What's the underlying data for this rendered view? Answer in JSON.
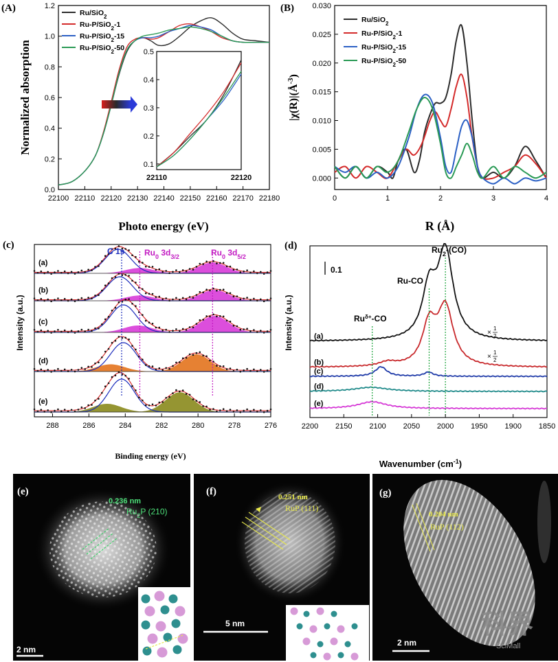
{
  "chart_data": [
    {
      "panel": "(A)",
      "type": "line",
      "xlabel": "Photo energy (eV)",
      "ylabel": "Normalized absorption",
      "xlim": [
        22100,
        22180
      ],
      "ylim": [
        0,
        1.2
      ],
      "xticks": [
        "22100",
        "22110",
        "22120",
        "22130",
        "22140",
        "22150",
        "22160",
        "22170",
        "22180"
      ],
      "yticks": [
        "0.0",
        "0.2",
        "0.4",
        "0.6",
        "0.8",
        "1.0",
        "1.2"
      ],
      "legend": "top-left",
      "series": [
        {
          "name": "Ru/SiO2",
          "color": "#2b2b2b",
          "x": [
            22100,
            22105,
            22110,
            22114,
            22117,
            22120,
            22123,
            22126,
            22129,
            22132,
            22135,
            22138,
            22142,
            22146,
            22150,
            22154,
            22158,
            22162,
            22166,
            22170,
            22175,
            22180
          ],
          "y": [
            0.03,
            0.05,
            0.12,
            0.22,
            0.36,
            0.55,
            0.75,
            0.9,
            0.97,
            0.99,
            0.97,
            0.94,
            0.95,
            1.0,
            1.06,
            1.1,
            1.12,
            1.08,
            1.02,
            0.98,
            0.97,
            0.96
          ]
        },
        {
          "name": "Ru-P/SiO2-1",
          "color": "#d42a2a",
          "x": [
            22100,
            22105,
            22110,
            22114,
            22117,
            22120,
            22123,
            22126,
            22129,
            22132,
            22135,
            22138,
            22142,
            22146,
            22150,
            22154,
            22158,
            22162,
            22166,
            22170,
            22175,
            22180
          ],
          "y": [
            0.03,
            0.05,
            0.12,
            0.22,
            0.37,
            0.57,
            0.78,
            0.93,
            0.98,
            0.99,
            0.98,
            0.99,
            1.03,
            1.07,
            1.08,
            1.06,
            1.03,
            0.99,
            0.97,
            0.96,
            0.96,
            0.96
          ]
        },
        {
          "name": "Ru-P/SiO2-15",
          "color": "#2a5fc4",
          "x": [
            22100,
            22105,
            22110,
            22114,
            22117,
            22120,
            22123,
            22126,
            22129,
            22132,
            22135,
            22138,
            22142,
            22146,
            22150,
            22154,
            22158,
            22162,
            22166,
            22170,
            22175,
            22180
          ],
          "y": [
            0.03,
            0.05,
            0.12,
            0.22,
            0.36,
            0.55,
            0.76,
            0.91,
            0.97,
            0.99,
            0.99,
            1.0,
            1.03,
            1.05,
            1.07,
            1.06,
            1.04,
            1.0,
            0.97,
            0.96,
            0.96,
            0.96
          ]
        },
        {
          "name": "Ru-P/SiO2-50",
          "color": "#2a9a55",
          "x": [
            22100,
            22105,
            22110,
            22114,
            22117,
            22120,
            22123,
            22126,
            22129,
            22132,
            22135,
            22138,
            22142,
            22146,
            22150,
            22154,
            22158,
            22162,
            22166,
            22170,
            22175,
            22180
          ],
          "y": [
            0.03,
            0.05,
            0.12,
            0.22,
            0.36,
            0.55,
            0.76,
            0.91,
            0.97,
            1.0,
            1.01,
            1.02,
            1.04,
            1.05,
            1.06,
            1.05,
            1.03,
            1.0,
            0.97,
            0.96,
            0.96,
            0.96
          ]
        }
      ],
      "inset": {
        "xlim": [
          22110,
          22120
        ],
        "ylim": [
          0.08,
          0.5
        ],
        "xticks": [
          "22110",
          "22120"
        ],
        "yticks": [
          "0.1",
          "0.2",
          "0.3",
          "0.4",
          "0.5"
        ],
        "series": [
          {
            "color": "#2b2b2b",
            "x": [
              22110,
              22112,
              22114,
              22116,
              22118,
              22120
            ],
            "y": [
              0.09,
              0.14,
              0.2,
              0.26,
              0.35,
              0.47
            ]
          },
          {
            "color": "#d42a2a",
            "x": [
              22110,
              22112,
              22114,
              22116,
              22118,
              22120
            ],
            "y": [
              0.09,
              0.14,
              0.21,
              0.28,
              0.36,
              0.46
            ]
          },
          {
            "color": "#2a5fc4",
            "x": [
              22110,
              22112,
              22114,
              22116,
              22118,
              22120
            ],
            "y": [
              0.09,
              0.13,
              0.19,
              0.26,
              0.33,
              0.42
            ]
          },
          {
            "color": "#2a9a55",
            "x": [
              22110,
              22112,
              22114,
              22116,
              22118,
              22120
            ],
            "y": [
              0.09,
              0.13,
              0.19,
              0.26,
              0.34,
              0.43
            ]
          }
        ]
      }
    },
    {
      "panel": "(B)",
      "type": "line",
      "xlabel": "R (Å)",
      "ylabel": "|χ(R)|(Å-3)",
      "xlim": [
        0,
        4
      ],
      "ylim": [
        -0.002,
        0.03
      ],
      "xticks": [
        "0",
        "1",
        "2",
        "3",
        "4"
      ],
      "yticks": [
        "0.000",
        "0.005",
        "0.010",
        "0.015",
        "0.020",
        "0.025",
        "0.030"
      ],
      "legend": "top-left",
      "series": [
        {
          "name": "Ru/SiO2",
          "color": "#2b2b2b",
          "x": [
            0,
            0.2,
            0.4,
            0.6,
            0.8,
            1.0,
            1.1,
            1.2,
            1.35,
            1.5,
            1.6,
            1.7,
            1.8,
            1.9,
            2.0,
            2.1,
            2.2,
            2.3,
            2.4,
            2.5,
            2.6,
            2.7,
            2.8,
            3.0,
            3.2,
            3.4,
            3.6,
            3.8,
            4.0
          ],
          "y": [
            0.002,
            0.0,
            0.002,
            0.0,
            0.002,
            0.001,
            0.0,
            0.003,
            0.005,
            0.001,
            0.003,
            0.008,
            0.011,
            0.013,
            0.013,
            0.014,
            0.018,
            0.024,
            0.0265,
            0.02,
            0.01,
            0.002,
            0.0,
            0.001,
            0.0,
            0.002,
            0.0055,
            0.003,
            0.0
          ]
        },
        {
          "name": "Ru-P/SiO2-1",
          "color": "#d42a2a",
          "x": [
            0,
            0.2,
            0.4,
            0.6,
            0.8,
            1.0,
            1.2,
            1.35,
            1.5,
            1.65,
            1.8,
            1.9,
            2.0,
            2.1,
            2.2,
            2.3,
            2.4,
            2.5,
            2.6,
            2.7,
            2.8,
            3.0,
            3.2,
            3.4,
            3.6,
            3.8,
            4.0
          ],
          "y": [
            0.001,
            0.002,
            0.0,
            0.002,
            0.001,
            0.0,
            0.003,
            0.005,
            0.004,
            0.006,
            0.01,
            0.0115,
            0.01,
            0.009,
            0.012,
            0.016,
            0.018,
            0.014,
            0.007,
            0.002,
            0.0,
            0.0,
            0.001,
            0.002,
            0.004,
            0.0025,
            0.0
          ]
        },
        {
          "name": "Ru-P/SiO2-15",
          "color": "#2a5fc4",
          "x": [
            0,
            0.2,
            0.4,
            0.6,
            0.8,
            1.0,
            1.2,
            1.4,
            1.55,
            1.7,
            1.85,
            2.0,
            2.1,
            2.2,
            2.3,
            2.4,
            2.5,
            2.6,
            2.7,
            2.8,
            3.0,
            3.2,
            3.4,
            3.6,
            3.8,
            4.0
          ],
          "y": [
            0.002,
            0.001,
            0.002,
            0.0,
            0.001,
            0.0,
            0.002,
            0.007,
            0.012,
            0.0145,
            0.013,
            0.007,
            0.002,
            0.001,
            0.005,
            0.009,
            0.01,
            0.007,
            0.002,
            0.0,
            -0.001,
            0.0,
            -0.001,
            0.0,
            -0.0005,
            0.0
          ]
        },
        {
          "name": "Ru-P/SiO2-50",
          "color": "#2a9a55",
          "x": [
            0,
            0.2,
            0.4,
            0.6,
            0.8,
            1.0,
            1.2,
            1.4,
            1.55,
            1.7,
            1.85,
            2.0,
            2.1,
            2.2,
            2.3,
            2.4,
            2.5,
            2.6,
            2.7,
            2.8,
            3.0,
            3.2,
            3.4,
            3.6,
            3.8,
            4.0
          ],
          "y": [
            0.002,
            0.0,
            0.002,
            0.0,
            0.002,
            0.001,
            0.003,
            0.008,
            0.012,
            0.014,
            0.012,
            0.006,
            0.001,
            0.0,
            0.002,
            0.004,
            0.006,
            0.004,
            0.001,
            0.0,
            0.002,
            0.0,
            0.002,
            0.001,
            0.0,
            0.001
          ]
        }
      ]
    },
    {
      "panel": "(c)",
      "type": "line",
      "xlabel": "Binding energy (eV)",
      "ylabel": "Intensity (a.u.)",
      "xlim": [
        289,
        276
      ],
      "xticks": [
        "288",
        "286",
        "284",
        "282",
        "280",
        "278",
        "276"
      ],
      "annotations": [
        "C 1s",
        "Ru0 3d3/2",
        "Ru0 3d5/2"
      ],
      "spectra": [
        {
          "label": "(a)",
          "fill": "#d83bd8",
          "c1s": 284.4,
          "ru": 283.2,
          "ru2": 279.2,
          "ru_h": 0.22,
          "ru2_h": 0.45
        },
        {
          "label": "(b)",
          "fill": "#d83bd8",
          "c1s": 284.3,
          "ru": 283.2,
          "ru2": 279.1,
          "ru_h": 0.22,
          "ru2_h": 0.45
        },
        {
          "label": "(c)",
          "fill": "#d83bd8",
          "c1s": 284.1,
          "ru": 283.3,
          "ru2": 279.1,
          "ru_h": 0.25,
          "ru2_h": 0.6
        },
        {
          "label": "(d)",
          "fill": "#e3731d",
          "c1s": 284.1,
          "ru": 284.8,
          "ru2": 280.1,
          "ru_h": 0.25,
          "ru2_h": 0.6
        },
        {
          "label": "(e)",
          "fill": "#8a8a1c",
          "c1s": 284.2,
          "ru": 285.0,
          "ru2": 281.0,
          "ru_h": 0.25,
          "ru2_h": 0.6
        }
      ]
    },
    {
      "panel": "(d)",
      "type": "line",
      "xlabel": "Wavenumber (cm-1)",
      "ylabel": "Intensity (a.u.)",
      "xlim": [
        2200,
        1850
      ],
      "xticks": [
        "2200",
        "2150",
        "2100",
        "2050",
        "2000",
        "1950",
        "1900",
        "1850"
      ],
      "scale_bar": "0.1",
      "annotations": [
        "Ru-CO",
        "Ru2-(CO)",
        "Ruδ+-CO"
      ],
      "multiplier": "×1/2",
      "spectra": [
        {
          "label": "(a)",
          "color": "#111111"
        },
        {
          "label": "(b)",
          "color": "#c8282b"
        },
        {
          "label": "(c)",
          "color": "#1e3aa8"
        },
        {
          "label": "(d)",
          "color": "#1f8a8a"
        },
        {
          "label": "(e)",
          "color": "#d63ad6"
        }
      ]
    }
  ],
  "labels": {
    "A": "(A)",
    "B": "(B)",
    "c": "(c)",
    "d": "(d)",
    "e": "(e)",
    "f": "(f)",
    "g": "(g)",
    "ylabelA": "Normalized absorption",
    "xlabelA": "Photo energy (eV)",
    "ylabelB": "|χ(R)|(Å",
    "ylabelB_sup": "-3",
    "ylabelB_end": ")",
    "xlabelB": "R (Å)",
    "xlabelc": "Binding energy (eV)",
    "ylabelc": "Intensity (a.u.)",
    "c1s": "C 1s",
    "ru32": "Ru",
    "ru32_sub": "0",
    "ru32_rest": " 3d",
    "ru32_sub2": "3/2",
    "ru52": "Ru",
    "ru52_sub": "0",
    "ru52_rest": " 3d",
    "ru52_sub2": "5/2",
    "xlabeld": "Wavenumber (cm",
    "xlabeld_sup": "-1",
    "xlabeld_end": ")",
    "ylabeld": "Intensity (a.u.)",
    "ruco": "Ru-CO",
    "ru2co": "Ru",
    "ru2co_sub": "2",
    "ru2co_rest": "-(CO)",
    "rudco": "Ru",
    "rudco_sup": "δ+",
    "rudco_rest": "-CO",
    "scale": "0.1",
    "half1": "×",
    "half2": "×",
    "halfnum": "1",
    "halfden": "2",
    "legend_names": [
      "Ru/SiO",
      "Ru-P/SiO",
      "Ru-P/SiO",
      "Ru-P/SiO"
    ],
    "legend_sub": "2",
    "legend_suffix": [
      "",
      "-1",
      "-15",
      "-50"
    ]
  },
  "micrographs": {
    "e": {
      "spacing": "0.236 nm",
      "plane": "Ru",
      "plane_sub": "2",
      "plane_rest": "P (210)",
      "scale": "2 nm",
      "label_color": "#4ee07a"
    },
    "f": {
      "spacing": "0.251 nm",
      "plane": "RuP (111)",
      "scale": "5 nm",
      "label_color": "#e8e84a"
    },
    "g": {
      "spacing": "0.204 nm",
      "plane": "RuP (112)",
      "scale": "2 nm",
      "label_color": "#e8e84a"
    }
  },
  "watermark": {
    "cn": "科界",
    "en": "SciMall"
  }
}
